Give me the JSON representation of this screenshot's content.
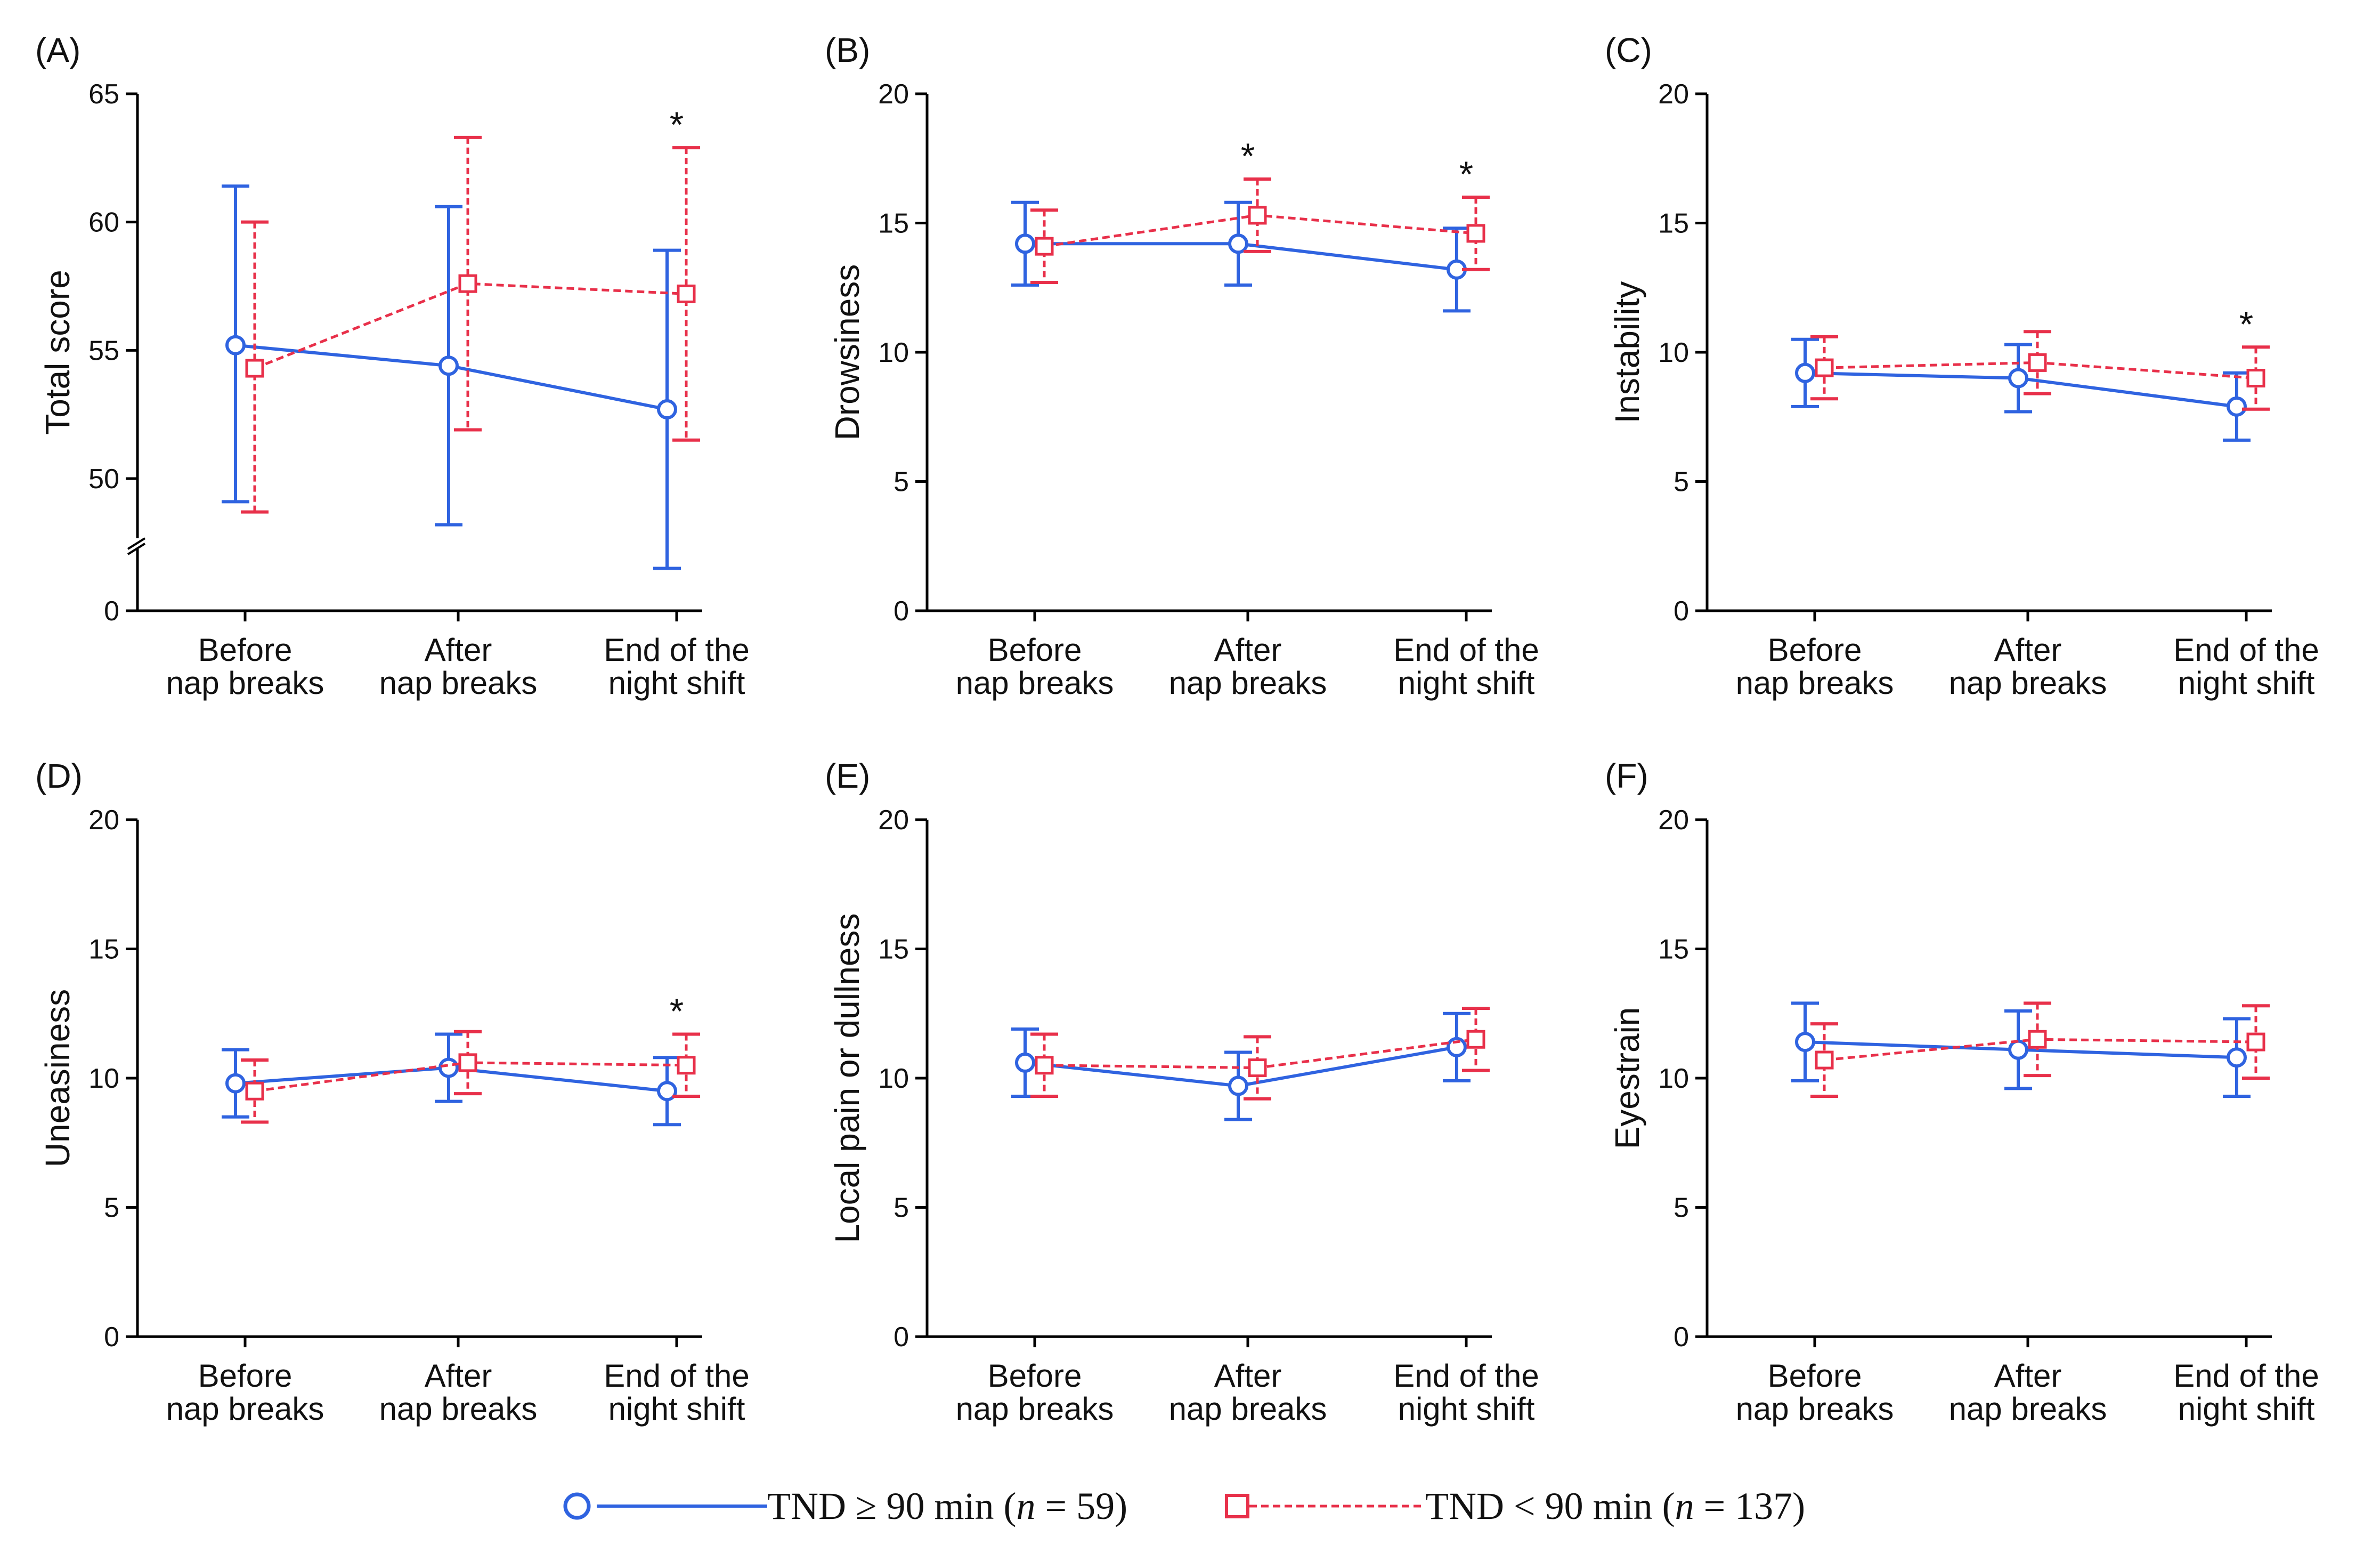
{
  "legend": {
    "series_a": "TND ≥ 90 min (n = 59)",
    "series_a_prefix": "TND ≥ 90 min (",
    "series_a_n": "n",
    "series_a_suffix": " = 59)",
    "series_b": "TND < 90 min (n = 137)",
    "series_b_prefix": "TND < 90 min (",
    "series_b_n": "n",
    "series_b_suffix": " = 137)"
  },
  "colors": {
    "blue": "#2f63e0",
    "red": "#e8304a"
  },
  "chart_data": [
    {
      "panel": "(A)",
      "type": "line",
      "ylabel": "Total score",
      "categories": [
        "Before nap breaks",
        "After nap breaks",
        "End of the night shift"
      ],
      "category_lines": [
        [
          "Before",
          "nap breaks"
        ],
        [
          "After",
          "nap breaks"
        ],
        [
          "End of the",
          "night shift"
        ]
      ],
      "ylim": [
        45,
        65
      ],
      "yticks": [
        50,
        55,
        60,
        65
      ],
      "zero_tick": "0",
      "axis_break": true,
      "series": [
        {
          "name": "TND ≥ 90 min (n = 59)",
          "values": [
            55.2,
            54.4,
            52.7
          ],
          "err_low": [
            49.1,
            48.2,
            46.5
          ],
          "err_high": [
            61.4,
            60.6,
            58.9
          ]
        },
        {
          "name": "TND < 90 min (n = 137)",
          "values": [
            54.3,
            57.6,
            57.2
          ],
          "err_low": [
            48.7,
            51.9,
            51.5
          ],
          "err_high": [
            60.0,
            63.3,
            62.9
          ]
        }
      ],
      "significance": [
        "",
        "",
        "*"
      ]
    },
    {
      "panel": "(B)",
      "type": "line",
      "ylabel": "Drowsiness",
      "categories": [
        "Before nap breaks",
        "After nap breaks",
        "End of the night shift"
      ],
      "category_lines": [
        [
          "Before",
          "nap breaks"
        ],
        [
          "After",
          "nap breaks"
        ],
        [
          "End of the",
          "night shift"
        ]
      ],
      "ylim": [
        0,
        20
      ],
      "yticks": [
        0,
        5,
        10,
        15,
        20
      ],
      "series": [
        {
          "name": "TND ≥ 90 min (n = 59)",
          "values": [
            14.2,
            14.2,
            13.2
          ],
          "err_low": [
            12.6,
            12.6,
            11.6
          ],
          "err_high": [
            15.8,
            15.8,
            14.8
          ]
        },
        {
          "name": "TND < 90 min (n = 137)",
          "values": [
            14.1,
            15.3,
            14.6
          ],
          "err_low": [
            12.7,
            13.9,
            13.2
          ],
          "err_high": [
            15.5,
            16.7,
            16.0
          ]
        }
      ],
      "significance": [
        "",
        "*",
        "*"
      ]
    },
    {
      "panel": "(C)",
      "type": "line",
      "ylabel": "Instability",
      "categories": [
        "Before nap breaks",
        "After nap breaks",
        "End of the night shift"
      ],
      "category_lines": [
        [
          "Before",
          "nap breaks"
        ],
        [
          "After",
          "nap breaks"
        ],
        [
          "End of the",
          "night shift"
        ]
      ],
      "ylim": [
        0,
        20
      ],
      "yticks": [
        0,
        5,
        10,
        15,
        20
      ],
      "series": [
        {
          "name": "TND ≥ 90 min (n = 59)",
          "values": [
            9.2,
            9.0,
            7.9
          ],
          "err_low": [
            7.9,
            7.7,
            6.6
          ],
          "err_high": [
            10.5,
            10.3,
            9.2
          ]
        },
        {
          "name": "TND < 90 min (n = 137)",
          "values": [
            9.4,
            9.6,
            9.0
          ],
          "err_low": [
            8.2,
            8.4,
            7.8
          ],
          "err_high": [
            10.6,
            10.8,
            10.2
          ]
        }
      ],
      "significance": [
        "",
        "",
        "*"
      ]
    },
    {
      "panel": "(D)",
      "type": "line",
      "ylabel": "Uneasiness",
      "categories": [
        "Before nap breaks",
        "After nap breaks",
        "End of the night shift"
      ],
      "category_lines": [
        [
          "Before",
          "nap breaks"
        ],
        [
          "After",
          "nap breaks"
        ],
        [
          "End of the",
          "night shift"
        ]
      ],
      "ylim": [
        0,
        20
      ],
      "yticks": [
        0,
        5,
        10,
        15,
        20
      ],
      "series": [
        {
          "name": "TND ≥ 90 min (n = 59)",
          "values": [
            9.8,
            10.4,
            9.5
          ],
          "err_low": [
            8.5,
            9.1,
            8.2
          ],
          "err_high": [
            11.1,
            11.7,
            10.8
          ]
        },
        {
          "name": "TND < 90 min (n = 137)",
          "values": [
            9.5,
            10.6,
            10.5
          ],
          "err_low": [
            8.3,
            9.4,
            9.3
          ],
          "err_high": [
            10.7,
            11.8,
            11.7
          ]
        }
      ],
      "significance": [
        "",
        "",
        "*"
      ]
    },
    {
      "panel": "(E)",
      "type": "line",
      "ylabel": "Local pain or dullness",
      "categories": [
        "Before nap breaks",
        "After nap breaks",
        "End of the night shift"
      ],
      "category_lines": [
        [
          "Before",
          "nap breaks"
        ],
        [
          "After",
          "nap breaks"
        ],
        [
          "End of the",
          "night shift"
        ]
      ],
      "ylim": [
        0,
        20
      ],
      "yticks": [
        0,
        5,
        10,
        15,
        20
      ],
      "series": [
        {
          "name": "TND ≥ 90 min (n = 59)",
          "values": [
            10.6,
            9.7,
            11.2
          ],
          "err_low": [
            9.3,
            8.4,
            9.9
          ],
          "err_high": [
            11.9,
            11.0,
            12.5
          ]
        },
        {
          "name": "TND < 90 min (n = 137)",
          "values": [
            10.5,
            10.4,
            11.5
          ],
          "err_low": [
            9.3,
            9.2,
            10.3
          ],
          "err_high": [
            11.7,
            11.6,
            12.7
          ]
        }
      ],
      "significance": [
        "",
        "",
        ""
      ]
    },
    {
      "panel": "(F)",
      "type": "line",
      "ylabel": "Eyestrain",
      "categories": [
        "Before nap breaks",
        "After nap breaks",
        "End of the night shift"
      ],
      "category_lines": [
        [
          "Before",
          "nap breaks"
        ],
        [
          "After",
          "nap breaks"
        ],
        [
          "End of the",
          "night shift"
        ]
      ],
      "ylim": [
        0,
        20
      ],
      "yticks": [
        0,
        5,
        10,
        15,
        20
      ],
      "series": [
        {
          "name": "TND ≥ 90 min (n = 59)",
          "values": [
            11.4,
            11.1,
            10.8
          ],
          "err_low": [
            9.9,
            9.6,
            9.3
          ],
          "err_high": [
            12.9,
            12.6,
            12.3
          ]
        },
        {
          "name": "TND < 90 min (n = 137)",
          "values": [
            10.7,
            11.5,
            11.4
          ],
          "err_low": [
            9.3,
            10.1,
            10.0
          ],
          "err_high": [
            12.1,
            12.9,
            12.8
          ]
        }
      ],
      "significance": [
        "",
        "",
        ""
      ]
    }
  ]
}
